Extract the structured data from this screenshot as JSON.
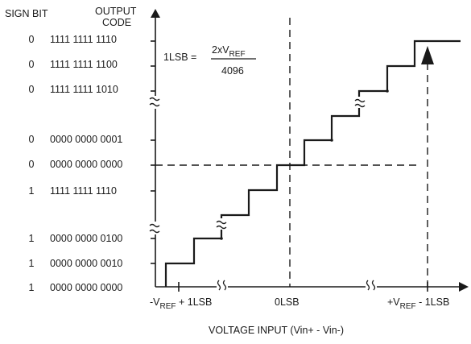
{
  "header": {
    "sign_bit": "SIGN BIT",
    "output_line1": "OUTPUT",
    "output_line2": "CODE"
  },
  "rows": [
    {
      "sign": "0",
      "code": "1111 1111 1110"
    },
    {
      "sign": "0",
      "code": "1111 1111 1100"
    },
    {
      "sign": "0",
      "code": "1111 1111 1010"
    },
    {
      "sign": "0",
      "code": "0000 0000 0001"
    },
    {
      "sign": "0",
      "code": "0000 0000 0000"
    },
    {
      "sign": "1",
      "code": "1111 1111 1110"
    },
    {
      "sign": "1",
      "code": "0000 0000 0100"
    },
    {
      "sign": "1",
      "code": "0000 0000 0010"
    },
    {
      "sign": "1",
      "code": "0000 0000 0000"
    }
  ],
  "formula": {
    "lhs": "1LSB =",
    "num_main": "2xV",
    "num_sub": "REF",
    "den": "4096"
  },
  "x_labels": {
    "left_a": "-V",
    "left_sub": "REF",
    "left_b": " + 1LSB",
    "center": "0LSB",
    "right_a": "+V",
    "right_sub": "REF",
    "right_b": " - 1LSB"
  },
  "x_axis_title": "VOLTAGE INPUT (Vin+ - Vin-)"
}
